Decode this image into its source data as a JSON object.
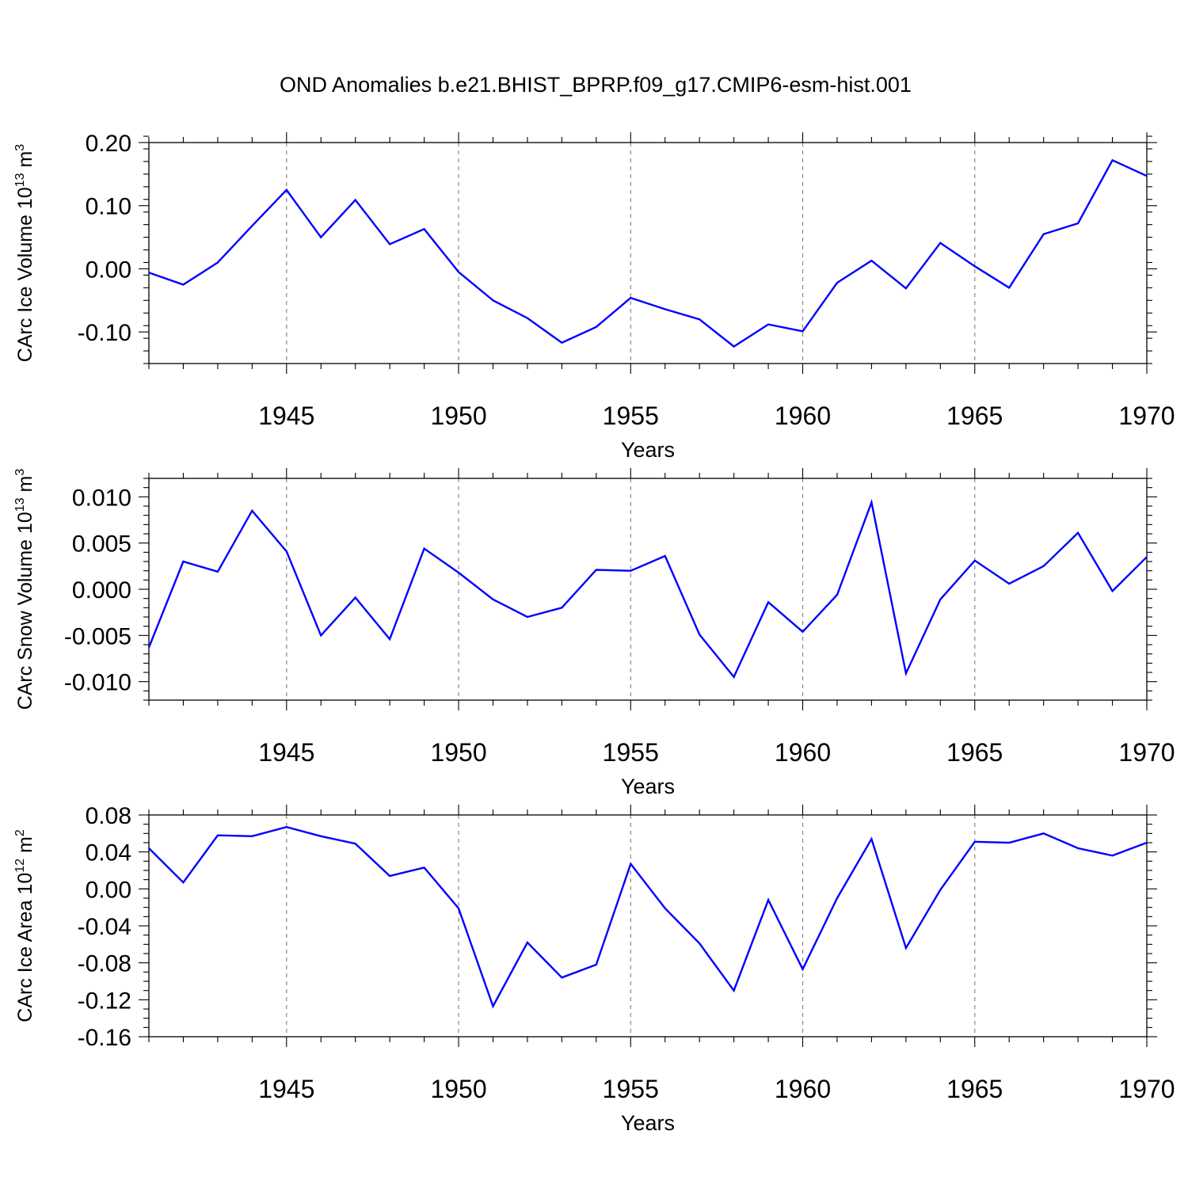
{
  "title": "OND Anomalies b.e21.BHIST_BPRP.f09_g17.CMIP6-esm-hist.001",
  "line_color": "#0000ff",
  "chart_data": [
    {
      "type": "line",
      "ylabel_main": "CArc Ice Volume 10",
      "ylabel_exp": "13",
      "ylabel_unit": " m",
      "ylabel_unit_exp": "3",
      "xlabel": "Years",
      "xlim": [
        1941,
        1970
      ],
      "ylim": [
        -0.15,
        0.2
      ],
      "yticks": [
        0.2,
        0.1,
        0.0,
        -0.1
      ],
      "ytick_labels": [
        "0.20",
        "0.10",
        "0.00",
        "-0.10"
      ],
      "yminor_step": 0.02,
      "xticks": [
        1945,
        1950,
        1955,
        1960,
        1965,
        1970
      ],
      "xtick_labels": [
        "1945",
        "1950",
        "1955",
        "1960",
        "1965",
        "1970"
      ],
      "x": [
        1941,
        1942,
        1943,
        1944,
        1945,
        1946,
        1947,
        1948,
        1949,
        1950,
        1951,
        1952,
        1953,
        1954,
        1955,
        1956,
        1957,
        1958,
        1959,
        1960,
        1961,
        1962,
        1963,
        1964,
        1965,
        1966,
        1967,
        1968,
        1969,
        1970
      ],
      "values": [
        -0.006,
        -0.025,
        0.01,
        0.068,
        0.125,
        0.05,
        0.109,
        0.039,
        0.063,
        -0.005,
        -0.05,
        -0.078,
        -0.117,
        -0.092,
        -0.046,
        -0.064,
        -0.08,
        -0.123,
        -0.088,
        -0.099,
        -0.022,
        0.013,
        -0.031,
        0.041,
        0.004,
        -0.03,
        0.055,
        0.072,
        0.172,
        0.147
      ]
    },
    {
      "type": "line",
      "ylabel_main": "CArc Snow Volume 10",
      "ylabel_exp": "13",
      "ylabel_unit": " m",
      "ylabel_unit_exp": "3",
      "xlabel": "Years",
      "xlim": [
        1941,
        1970
      ],
      "ylim": [
        -0.012,
        0.012
      ],
      "yticks": [
        0.01,
        0.005,
        0.0,
        -0.005,
        -0.01
      ],
      "ytick_labels": [
        "0.010",
        "0.005",
        "0.000",
        "-0.005",
        "-0.010"
      ],
      "yminor_step": 0.001,
      "xticks": [
        1945,
        1950,
        1955,
        1960,
        1965,
        1970
      ],
      "xtick_labels": [
        "1945",
        "1950",
        "1955",
        "1960",
        "1965",
        "1970"
      ],
      "x": [
        1941,
        1942,
        1943,
        1944,
        1945,
        1946,
        1947,
        1948,
        1949,
        1950,
        1951,
        1952,
        1953,
        1954,
        1955,
        1956,
        1957,
        1958,
        1959,
        1960,
        1961,
        1962,
        1963,
        1964,
        1965,
        1966,
        1967,
        1968,
        1969,
        1970
      ],
      "values": [
        -0.0063,
        0.003,
        0.0019,
        0.0085,
        0.0041,
        -0.005,
        -0.0009,
        -0.0054,
        0.0044,
        0.0018,
        -0.0011,
        -0.003,
        -0.002,
        0.0021,
        0.002,
        0.0036,
        -0.0049,
        -0.0095,
        -0.0014,
        -0.0046,
        -0.0006,
        0.0094,
        -0.0091,
        -0.0011,
        0.0031,
        0.0006,
        0.0025,
        0.0061,
        -0.0002,
        0.0035
      ]
    },
    {
      "type": "line",
      "ylabel_main": "CArc Ice Area 10",
      "ylabel_exp": "12",
      "ylabel_unit": " m",
      "ylabel_unit_exp": "2",
      "xlabel": "Years",
      "xlim": [
        1941,
        1970
      ],
      "ylim": [
        -0.16,
        0.08
      ],
      "yticks": [
        0.08,
        0.04,
        0.0,
        -0.04,
        -0.08,
        -0.12,
        -0.16
      ],
      "ytick_labels": [
        "0.08",
        "0.04",
        "0.00",
        "-0.04",
        "-0.08",
        "-0.12",
        "-0.16"
      ],
      "yminor_step": 0.01,
      "xticks": [
        1945,
        1950,
        1955,
        1960,
        1965,
        1970
      ],
      "xtick_labels": [
        "1945",
        "1950",
        "1955",
        "1960",
        "1965",
        "1970"
      ],
      "x": [
        1941,
        1942,
        1943,
        1944,
        1945,
        1946,
        1947,
        1948,
        1949,
        1950,
        1951,
        1952,
        1953,
        1954,
        1955,
        1956,
        1957,
        1958,
        1959,
        1960,
        1961,
        1962,
        1963,
        1964,
        1965,
        1966,
        1967,
        1968,
        1969,
        1970
      ],
      "values": [
        0.044,
        0.007,
        0.058,
        0.057,
        0.067,
        0.057,
        0.049,
        0.014,
        0.023,
        -0.021,
        -0.127,
        -0.058,
        -0.096,
        -0.082,
        0.027,
        -0.021,
        -0.059,
        -0.11,
        -0.012,
        -0.087,
        -0.01,
        0.054,
        -0.064,
        -0.001,
        0.051,
        0.05,
        0.06,
        0.044,
        0.036,
        0.05
      ]
    }
  ]
}
